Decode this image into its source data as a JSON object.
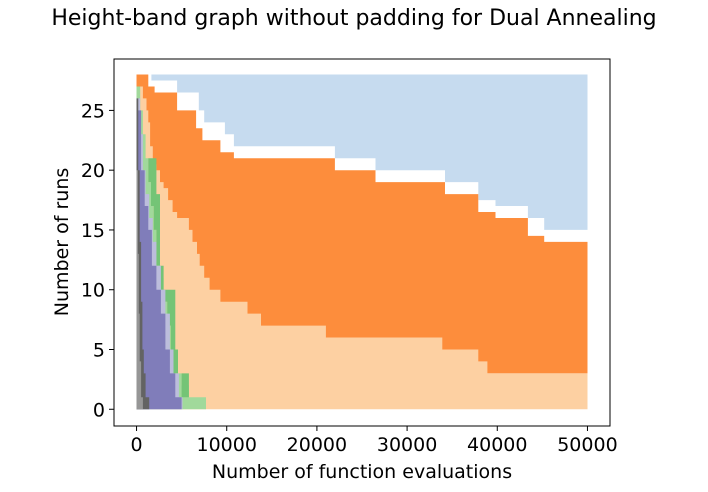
{
  "chart_data": {
    "type": "area",
    "title": "Height-band graph without padding for Dual Annealing",
    "xlabel": "Number of function evaluations",
    "ylabel": "Number of runs",
    "xlim": [
      -2500,
      52500
    ],
    "ylim": [
      -1.4,
      29.3
    ],
    "xticks": [
      0,
      10000,
      20000,
      30000,
      40000,
      50000
    ],
    "yticks": [
      0,
      5,
      10,
      15,
      20,
      25
    ],
    "grid": false,
    "bands": [
      {
        "color": "#c6dbef",
        "upper": [
          [
            0,
            28
          ],
          [
            1650,
            28
          ],
          [
            1650,
            27.5
          ],
          [
            4500,
            27.5
          ],
          [
            4500,
            26.5
          ],
          [
            6900,
            26.5
          ],
          [
            6900,
            25
          ],
          [
            7500,
            25
          ],
          [
            7500,
            24
          ],
          [
            9800,
            24
          ],
          [
            9800,
            23
          ],
          [
            10800,
            23
          ],
          [
            10800,
            22
          ],
          [
            22000,
            22
          ],
          [
            22000,
            21
          ],
          [
            26500,
            21
          ],
          [
            26500,
            20
          ],
          [
            34200,
            20
          ],
          [
            34200,
            19
          ],
          [
            37900,
            19
          ],
          [
            37900,
            17.5
          ],
          [
            39800,
            17.5
          ],
          [
            39800,
            17
          ],
          [
            43400,
            17
          ],
          [
            43400,
            16
          ],
          [
            45200,
            16
          ],
          [
            45200,
            15
          ],
          [
            50000,
            15
          ]
        ],
        "lower": [
          [
            0,
            28
          ],
          [
            50000,
            28
          ]
        ]
      },
      {
        "color": "#fd8d3c",
        "upper": [
          [
            0,
            28
          ],
          [
            1300,
            28
          ],
          [
            1300,
            27
          ],
          [
            2000,
            27
          ],
          [
            2000,
            26.5
          ],
          [
            4500,
            26.5
          ],
          [
            4500,
            25
          ],
          [
            6600,
            25
          ],
          [
            6600,
            23.5
          ],
          [
            7300,
            23.5
          ],
          [
            7300,
            22.5
          ],
          [
            9300,
            22.5
          ],
          [
            9300,
            21.5
          ],
          [
            10800,
            21.5
          ],
          [
            10800,
            21
          ],
          [
            22000,
            21
          ],
          [
            22000,
            20
          ],
          [
            26500,
            20
          ],
          [
            26500,
            19
          ],
          [
            34200,
            19
          ],
          [
            34200,
            18
          ],
          [
            37900,
            18
          ],
          [
            37900,
            16.5
          ],
          [
            39800,
            16.5
          ],
          [
            39800,
            16
          ],
          [
            43400,
            16
          ],
          [
            43400,
            14.5
          ],
          [
            45200,
            14.5
          ],
          [
            45200,
            14
          ],
          [
            50000,
            14
          ]
        ],
        "lower": [
          [
            0,
            3
          ],
          [
            50000,
            3
          ]
        ]
      },
      {
        "color": "#fdd0a2",
        "upper": [
          [
            0,
            27
          ],
          [
            700,
            27
          ],
          [
            700,
            26
          ],
          [
            1100,
            26
          ],
          [
            1100,
            25
          ],
          [
            1300,
            25
          ],
          [
            1300,
            24
          ],
          [
            1500,
            24
          ],
          [
            1500,
            22
          ],
          [
            1800,
            22
          ],
          [
            1800,
            20.5
          ],
          [
            2200,
            20.5
          ],
          [
            2200,
            20
          ],
          [
            2600,
            20
          ],
          [
            2600,
            19
          ],
          [
            3000,
            19
          ],
          [
            3000,
            18.5
          ],
          [
            3500,
            18.5
          ],
          [
            3500,
            17.5
          ],
          [
            4000,
            17.5
          ],
          [
            4000,
            16.5
          ],
          [
            4500,
            16.5
          ],
          [
            4500,
            16
          ],
          [
            5800,
            16
          ],
          [
            5800,
            15
          ],
          [
            6200,
            15
          ],
          [
            6200,
            14
          ],
          [
            6700,
            14
          ],
          [
            6700,
            13
          ],
          [
            7000,
            13
          ],
          [
            7000,
            12
          ],
          [
            7500,
            12
          ],
          [
            7500,
            11
          ],
          [
            8100,
            11
          ],
          [
            8100,
            10
          ],
          [
            9300,
            10
          ],
          [
            9300,
            9
          ],
          [
            12300,
            9
          ],
          [
            12300,
            8
          ],
          [
            13800,
            8
          ],
          [
            13800,
            7
          ],
          [
            21000,
            7
          ],
          [
            21000,
            6
          ],
          [
            33900,
            6
          ],
          [
            33900,
            5
          ],
          [
            37900,
            5
          ],
          [
            37900,
            4
          ],
          [
            38900,
            4
          ],
          [
            38900,
            3
          ],
          [
            50000,
            3
          ]
        ],
        "lower": [
          [
            0,
            0
          ],
          [
            50000,
            0
          ]
        ]
      },
      {
        "color": "#a1d99b",
        "upper": [
          [
            0,
            27
          ],
          [
            400,
            27
          ],
          [
            400,
            25
          ],
          [
            700,
            25
          ],
          [
            700,
            23
          ],
          [
            1000,
            23
          ],
          [
            1000,
            21
          ],
          [
            1300,
            21
          ],
          [
            1300,
            19
          ],
          [
            1600,
            19
          ],
          [
            1600,
            17
          ],
          [
            1900,
            17
          ],
          [
            1900,
            15
          ],
          [
            2200,
            15
          ],
          [
            2200,
            13
          ],
          [
            2600,
            13
          ],
          [
            2600,
            11
          ],
          [
            3000,
            11
          ],
          [
            3000,
            9
          ],
          [
            3400,
            9
          ],
          [
            3400,
            7
          ],
          [
            3800,
            7
          ],
          [
            3800,
            5
          ],
          [
            4300,
            5
          ],
          [
            4300,
            3
          ],
          [
            5000,
            3
          ],
          [
            5000,
            2
          ],
          [
            5800,
            2
          ],
          [
            5800,
            1
          ],
          [
            7700,
            1
          ],
          [
            7700,
            0
          ],
          [
            7700,
            0
          ]
        ],
        "lower": [
          [
            0,
            0
          ],
          [
            7700,
            0
          ]
        ]
      },
      {
        "color": "#74c476",
        "upper": [
          [
            1300,
            21
          ],
          [
            2200,
            21
          ],
          [
            2200,
            18
          ],
          [
            2600,
            18
          ],
          [
            2600,
            12
          ],
          [
            3000,
            12
          ],
          [
            3000,
            10
          ],
          [
            4300,
            10
          ],
          [
            4300,
            5
          ],
          [
            4600,
            5
          ],
          [
            4600,
            3
          ],
          [
            5800,
            3
          ],
          [
            5800,
            1
          ]
        ],
        "lower": [
          [
            1300,
            19
          ],
          [
            1600,
            19
          ],
          [
            1600,
            17
          ],
          [
            1900,
            17
          ],
          [
            1900,
            15
          ],
          [
            2200,
            15
          ],
          [
            2200,
            12
          ],
          [
            2600,
            12
          ],
          [
            2600,
            10
          ],
          [
            3000,
            10
          ],
          [
            3000,
            9
          ],
          [
            3400,
            9
          ],
          [
            3400,
            7
          ],
          [
            3800,
            7
          ],
          [
            3800,
            3
          ],
          [
            4300,
            3
          ],
          [
            4300,
            3
          ],
          [
            5000,
            3
          ],
          [
            5000,
            1
          ],
          [
            5800,
            1
          ]
        ]
      },
      {
        "color": "#bcbddc",
        "upper": [
          [
            0,
            26
          ],
          [
            400,
            26
          ],
          [
            400,
            23
          ],
          [
            700,
            23
          ],
          [
            700,
            20
          ],
          [
            1000,
            20
          ],
          [
            1000,
            18
          ],
          [
            1400,
            18
          ],
          [
            1400,
            16
          ],
          [
            1800,
            16
          ],
          [
            1800,
            14
          ],
          [
            2200,
            14
          ],
          [
            2200,
            12
          ],
          [
            2700,
            12
          ],
          [
            2700,
            10
          ],
          [
            3200,
            10
          ],
          [
            3200,
            8
          ],
          [
            3700,
            8
          ],
          [
            3700,
            5
          ],
          [
            4100,
            5
          ],
          [
            4100,
            3
          ],
          [
            4700,
            3
          ],
          [
            4700,
            1
          ],
          [
            5100,
            1
          ],
          [
            5100,
            0
          ]
        ],
        "lower": [
          [
            0,
            0
          ],
          [
            5100,
            0
          ]
        ]
      },
      {
        "color": "#807dba",
        "upper": [
          [
            0,
            25
          ],
          [
            500,
            25
          ],
          [
            500,
            20
          ],
          [
            900,
            20
          ],
          [
            900,
            17
          ],
          [
            1300,
            17
          ],
          [
            1300,
            15
          ],
          [
            1700,
            15
          ],
          [
            1700,
            12
          ],
          [
            2200,
            12
          ],
          [
            2200,
            10
          ],
          [
            2700,
            10
          ],
          [
            2700,
            8
          ],
          [
            3200,
            8
          ],
          [
            3200,
            5
          ],
          [
            3700,
            5
          ],
          [
            3700,
            3
          ],
          [
            4300,
            3
          ],
          [
            4300,
            1
          ],
          [
            5000,
            1
          ],
          [
            5000,
            0
          ]
        ],
        "lower": [
          [
            0,
            0
          ],
          [
            5000,
            0
          ]
        ]
      },
      {
        "color": "#636363",
        "upper": [
          [
            0,
            26
          ],
          [
            200,
            26
          ],
          [
            200,
            20
          ],
          [
            350,
            20
          ],
          [
            350,
            14
          ],
          [
            500,
            14
          ],
          [
            500,
            9
          ],
          [
            650,
            9
          ],
          [
            650,
            5
          ],
          [
            800,
            5
          ],
          [
            800,
            3
          ],
          [
            1000,
            3
          ],
          [
            1000,
            1
          ],
          [
            1400,
            1
          ],
          [
            1400,
            0
          ]
        ],
        "lower": [
          [
            0,
            0
          ],
          [
            1400,
            0
          ]
        ]
      },
      {
        "color": "#969696",
        "upper": [
          [
            0,
            20
          ],
          [
            150,
            20
          ],
          [
            150,
            13
          ],
          [
            250,
            13
          ],
          [
            250,
            8
          ],
          [
            350,
            8
          ],
          [
            350,
            4
          ],
          [
            500,
            4
          ],
          [
            500,
            1
          ],
          [
            700,
            1
          ],
          [
            700,
            0
          ]
        ],
        "lower": [
          [
            0,
            0
          ],
          [
            700,
            0
          ]
        ]
      }
    ]
  }
}
